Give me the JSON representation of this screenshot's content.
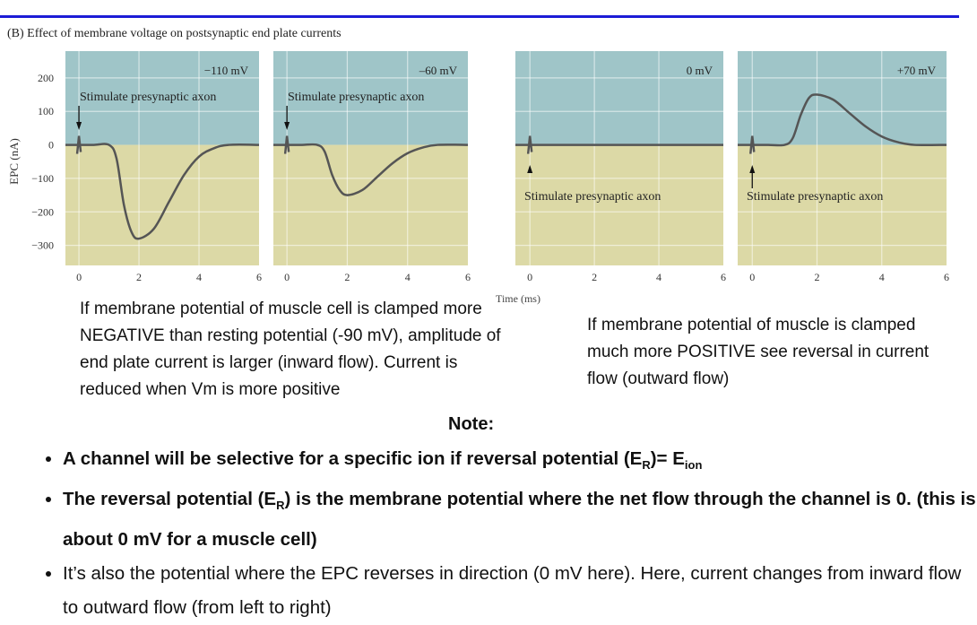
{
  "slide": {
    "figure_title": "(B) Effect of membrane voltage on postsynaptic end plate currents",
    "left_text": "If membrane potential of muscle cell is clamped more NEGATIVE than resting potential (-90 mV), amplitude of end plate current is larger (inward flow).  Current is reduced when Vm is more positive",
    "right_text": "If membrane potential of muscle is clamped much more POSITIVE see reversal in current flow (outward flow)",
    "note_heading": "Note:",
    "bullets": [
      {
        "pre": "A channel will be selective for a specific ion if reversal potential (E",
        "sub1": "R",
        "mid": ")= E",
        "sub2": "ion",
        "post": ""
      },
      {
        "pre": "The reversal potential (E",
        "sub1": "R",
        "mid": ") is the membrane potential where the net flow through the channel is 0. (this is about 0 mV for a muscle cell)"
      },
      {
        "text": "It’s also the potential where the EPC reverses in direction (0 mV here). Here, current changes from inward flow to outward flow (from left to right)"
      }
    ],
    "colors": {
      "rule": "#1c1cd6",
      "positive_region": "#9fc5c8",
      "negative_region": "#dcd9a6",
      "trace": "#555555"
    }
  },
  "chart_data": {
    "type": "line",
    "xlabel": "Time (ms)",
    "ylabel": "EPC (nA)",
    "ylim": [
      -360,
      280
    ],
    "xlim": [
      -0.45,
      6
    ],
    "grid": true,
    "y_ticks": [
      200,
      100,
      0,
      -100,
      -200,
      -300
    ],
    "x_ticks": [
      0,
      2,
      4,
      6
    ],
    "x": [
      0,
      0.5,
      1,
      1.25,
      1.5,
      1.75,
      2,
      2.5,
      3,
      3.5,
      4,
      4.5,
      5,
      6
    ],
    "panels": [
      {
        "label": "−110 mV",
        "annotation": "Stimulate presynaptic axon",
        "arrow": "down",
        "values": [
          0,
          0,
          0,
          -40,
          -180,
          -260,
          -280,
          -250,
          -170,
          -90,
          -35,
          -10,
          0,
          0
        ]
      },
      {
        "label": "–60 mV",
        "annotation": "Stimulate presynaptic axon",
        "arrow": "down",
        "values": [
          0,
          0,
          0,
          -20,
          -90,
          -135,
          -150,
          -135,
          -95,
          -55,
          -25,
          -8,
          0,
          0
        ]
      },
      {
        "label": "0 mV",
        "annotation": "Stimulate presynaptic axon",
        "arrow": "up",
        "values": [
          0,
          0,
          0,
          0,
          0,
          0,
          0,
          0,
          0,
          0,
          0,
          0,
          0,
          0
        ]
      },
      {
        "label": "+70 mV",
        "annotation": "Stimulate presynaptic axon",
        "arrow": "up",
        "values": [
          0,
          0,
          0,
          20,
          90,
          140,
          150,
          135,
          95,
          55,
          25,
          8,
          0,
          0
        ]
      }
    ]
  }
}
